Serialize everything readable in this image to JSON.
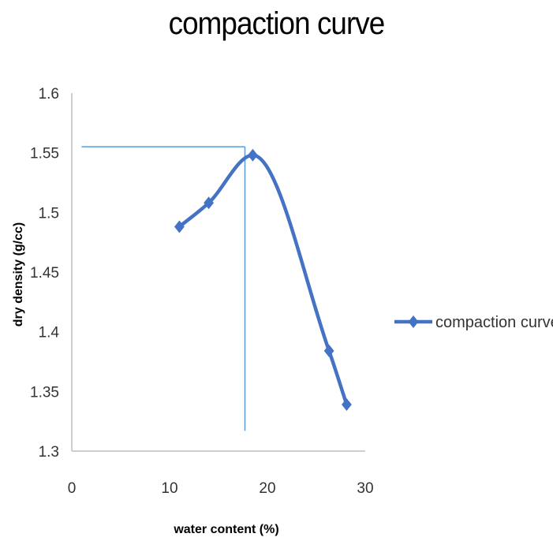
{
  "chart_data": {
    "type": "scatter",
    "title": "compaction curve",
    "xlabel": "water content (%)",
    "ylabel": "dry density (g/cc)",
    "xlim": [
      0,
      30
    ],
    "ylim": [
      1.3,
      1.6
    ],
    "xticks": [
      0,
      10,
      20,
      30
    ],
    "yticks": [
      1.3,
      1.35,
      1.4,
      1.45,
      1.5,
      1.55,
      1.6
    ],
    "grid": false,
    "legend": "right",
    "series": [
      {
        "name": "compaction curve",
        "smooth": true,
        "marker": "diamond",
        "color": "#4472C4",
        "x": [
          11,
          14,
          18.5,
          26.3,
          28.1
        ],
        "y": [
          1.488,
          1.508,
          1.548,
          1.384,
          1.339
        ]
      }
    ],
    "reference_lines": {
      "optimum_water_content": 17.7,
      "max_dry_density": 1.555,
      "color": "#5B9BD5"
    }
  }
}
